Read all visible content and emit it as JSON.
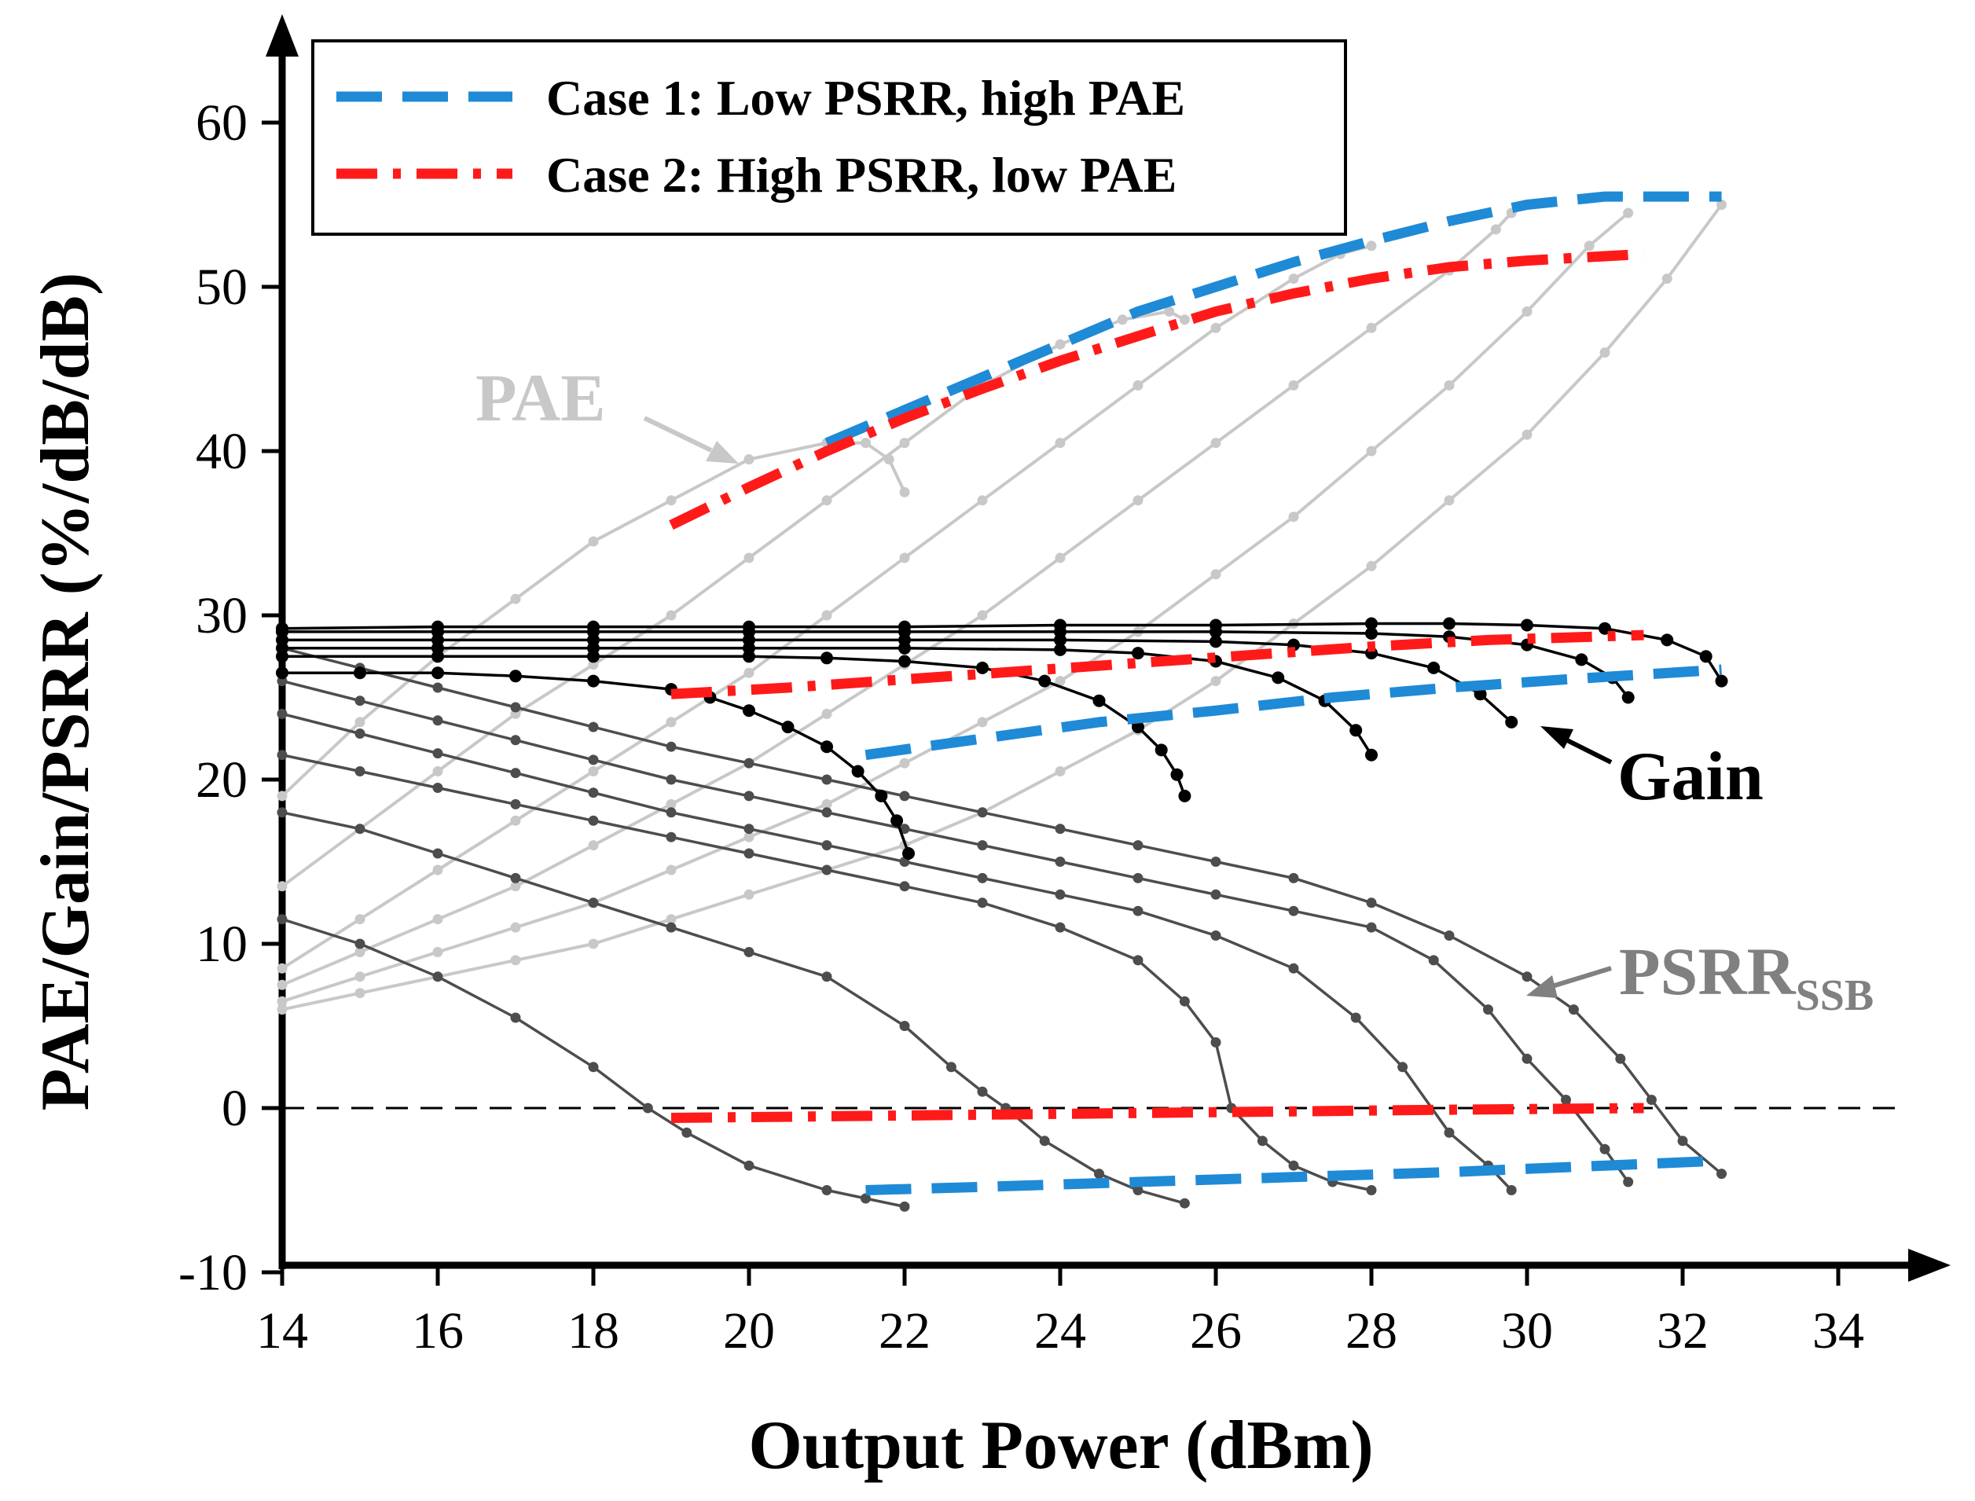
{
  "chart_data": {
    "type": "line",
    "title": "",
    "xlabel": "Output Power (dBm)",
    "ylabel": "PAE/Gain/PSRR (%/dB/dB)",
    "xlim": [
      14,
      35
    ],
    "ylim": [
      -10,
      63
    ],
    "xticks": [
      "14",
      "16",
      "18",
      "20",
      "22",
      "24",
      "26",
      "28",
      "30",
      "32",
      "34"
    ],
    "yticks": [
      "-10",
      "0",
      "10",
      "20",
      "30",
      "40",
      "50",
      "60"
    ],
    "legend_position": "top-left",
    "legend": [
      {
        "label": "Case 1: Low PSRR, high PAE",
        "style": "dashed",
        "color": "#1f8ad6"
      },
      {
        "label": "Case 2: High PSRR, low PAE",
        "style": "dashdot",
        "color": "#ff1a1a"
      }
    ],
    "annotations": {
      "pae": {
        "label": "PAE",
        "color": "#c8c8c8"
      },
      "gain": {
        "label": "Gain",
        "color": "#000000"
      },
      "psrr": {
        "label": "PSRR",
        "sub": "SSB",
        "color": "#808080"
      }
    },
    "colors": {
      "pae": "#c8c8c8",
      "gain": "#000000",
      "psrr": "#4d4d4d"
    },
    "zero_line": {
      "y": 0,
      "style": "dashed",
      "color": "#000000"
    },
    "pae_series": [
      {
        "name": "PAE sweep 1",
        "x": [
          14.0,
          15.0,
          16.0,
          17.0,
          18.0,
          19.0,
          20.0,
          21.0,
          21.5,
          21.8,
          22.0
        ],
        "y": [
          19,
          23.5,
          27.5,
          31,
          34.5,
          37,
          39.5,
          40.5,
          40.5,
          39.5,
          37.5
        ]
      },
      {
        "name": "PAE sweep 2",
        "x": [
          14.0,
          15.0,
          16.0,
          17.0,
          18.0,
          19.0,
          20.0,
          21.0,
          22.0,
          23.0,
          24.0,
          24.8,
          25.4,
          25.6
        ],
        "y": [
          13.5,
          17,
          20.5,
          24,
          27,
          30,
          33.5,
          37,
          40.5,
          44,
          46.5,
          48,
          48.5,
          48
        ]
      },
      {
        "name": "PAE sweep 3",
        "x": [
          14.0,
          15.0,
          16.0,
          17.0,
          18.0,
          19.0,
          20.0,
          21.0,
          22.0,
          23.0,
          24.0,
          25.0,
          26.0,
          27.0,
          27.6,
          28.0
        ],
        "y": [
          8.5,
          11.5,
          14.5,
          17.5,
          20.5,
          23.5,
          26.5,
          30,
          33.5,
          37,
          40.5,
          44,
          47.5,
          50.5,
          52,
          52.5
        ]
      },
      {
        "name": "PAE sweep 4",
        "x": [
          14.0,
          15.0,
          16.0,
          17.0,
          18.0,
          19.0,
          20.0,
          21.0,
          22.0,
          23.0,
          24.0,
          25.0,
          26.0,
          27.0,
          28.0,
          29.0,
          29.6,
          29.8
        ],
        "y": [
          7.5,
          9.5,
          11.5,
          13.5,
          16,
          18.5,
          21,
          24,
          27,
          30,
          33.5,
          37,
          40.5,
          44,
          47.5,
          51,
          53.5,
          54.5
        ]
      },
      {
        "name": "PAE sweep 5",
        "x": [
          14.0,
          15.0,
          16.0,
          17.0,
          18.0,
          19.0,
          20.0,
          21.0,
          22.0,
          23.0,
          24.0,
          25.0,
          26.0,
          27.0,
          28.0,
          29.0,
          30.0,
          30.8,
          31.3
        ],
        "y": [
          6.5,
          8,
          9.5,
          11,
          12.5,
          14.5,
          16.5,
          18.5,
          21,
          23.5,
          26,
          29,
          32.5,
          36,
          40,
          44,
          48.5,
          52.5,
          54.5
        ]
      },
      {
        "name": "PAE sweep 6",
        "x": [
          14.0,
          15.0,
          16.0,
          17.0,
          18.0,
          19.0,
          20.0,
          21.0,
          22.0,
          23.0,
          24.0,
          25.0,
          26.0,
          27.0,
          28.0,
          29.0,
          30.0,
          31.0,
          31.8,
          32.5
        ],
        "y": [
          6,
          7,
          8,
          9,
          10,
          11.5,
          13,
          14.5,
          16,
          18,
          20.5,
          23,
          26,
          29.5,
          33,
          37,
          41,
          46,
          50.5,
          55
        ]
      }
    ],
    "gain_series": [
      {
        "name": "Gain sweep 1",
        "x": [
          14.0,
          15.0,
          16.0,
          17.0,
          18.0,
          19.0,
          19.5,
          20.0,
          20.5,
          21.0,
          21.4,
          21.7,
          21.9,
          22.05
        ],
        "y": [
          26.5,
          26.5,
          26.5,
          26.3,
          26,
          25.5,
          25,
          24.2,
          23.2,
          22,
          20.5,
          19,
          17.5,
          15.5
        ]
      },
      {
        "name": "Gain sweep 2",
        "x": [
          14.0,
          16.0,
          18.0,
          20.0,
          21.0,
          22.0,
          23.0,
          23.8,
          24.5,
          25.0,
          25.3,
          25.5,
          25.6
        ],
        "y": [
          27.5,
          27.5,
          27.5,
          27.5,
          27.4,
          27.2,
          26.8,
          26,
          24.8,
          23.2,
          21.8,
          20.3,
          19
        ]
      },
      {
        "name": "Gain sweep 3",
        "x": [
          14.0,
          16.0,
          18.0,
          20.0,
          22.0,
          24.0,
          25.0,
          26.0,
          26.8,
          27.4,
          27.8,
          28.0
        ],
        "y": [
          28,
          28,
          28,
          28,
          28,
          27.9,
          27.7,
          27.2,
          26.2,
          24.8,
          23,
          21.5
        ]
      },
      {
        "name": "Gain sweep 4",
        "x": [
          14.0,
          16.0,
          18.0,
          20.0,
          22.0,
          24.0,
          26.0,
          27.0,
          28.0,
          28.8,
          29.4,
          29.8
        ],
        "y": [
          28.5,
          28.5,
          28.5,
          28.5,
          28.5,
          28.5,
          28.4,
          28.2,
          27.7,
          26.8,
          25.2,
          23.5
        ]
      },
      {
        "name": "Gain sweep 5",
        "x": [
          14.0,
          16.0,
          18.0,
          20.0,
          22.0,
          24.0,
          26.0,
          28.0,
          29.0,
          30.0,
          30.7,
          31.1,
          31.3
        ],
        "y": [
          29,
          29,
          29,
          29,
          29,
          29,
          29,
          28.9,
          28.7,
          28.2,
          27.3,
          26.2,
          25
        ]
      },
      {
        "name": "Gain sweep 6",
        "x": [
          14.0,
          16.0,
          18.0,
          20.0,
          22.0,
          24.0,
          26.0,
          28.0,
          29.0,
          30.0,
          31.0,
          31.8,
          32.3,
          32.5
        ],
        "y": [
          29.2,
          29.3,
          29.3,
          29.3,
          29.3,
          29.4,
          29.4,
          29.5,
          29.5,
          29.4,
          29.2,
          28.5,
          27.5,
          26
        ]
      }
    ],
    "psrr_series": [
      {
        "name": "PSRR sweep 1",
        "x": [
          14.0,
          15.0,
          16.0,
          17.0,
          18.0,
          18.7,
          19.2,
          20.0,
          21.0,
          21.5,
          22.0
        ],
        "y": [
          11.5,
          10,
          8,
          5.5,
          2.5,
          0,
          -1.5,
          -3.5,
          -5,
          -5.5,
          -6
        ]
      },
      {
        "name": "PSRR sweep 2",
        "x": [
          14.0,
          15.0,
          16.0,
          17.0,
          18.0,
          19.0,
          20.0,
          21.0,
          22.0,
          22.6,
          23.0,
          23.3,
          23.8,
          24.5,
          25.0,
          25.6
        ],
        "y": [
          18,
          17,
          15.5,
          14,
          12.5,
          11,
          9.5,
          8,
          5,
          2.5,
          1,
          0,
          -2,
          -4,
          -5,
          -5.8
        ]
      },
      {
        "name": "PSRR sweep 3",
        "x": [
          14.0,
          15.0,
          16.0,
          17.0,
          18.0,
          19.0,
          20.0,
          21.0,
          22.0,
          23.0,
          24.0,
          25.0,
          25.6,
          26.0,
          26.2,
          26.6,
          27.0,
          27.5,
          28.0
        ],
        "y": [
          21.5,
          20.5,
          19.5,
          18.5,
          17.5,
          16.5,
          15.5,
          14.5,
          13.5,
          12.5,
          11,
          9,
          6.5,
          4,
          0,
          -2,
          -3.5,
          -4.5,
          -5
        ]
      },
      {
        "name": "PSRR sweep 4",
        "x": [
          14.0,
          15.0,
          16.0,
          17.0,
          18.0,
          19.0,
          20.0,
          21.0,
          22.0,
          23.0,
          24.0,
          25.0,
          26.0,
          27.0,
          27.8,
          28.4,
          29.0,
          29.5,
          29.8
        ],
        "y": [
          24,
          22.8,
          21.6,
          20.4,
          19.2,
          18,
          17,
          16,
          15,
          14,
          13,
          12,
          10.5,
          8.5,
          5.5,
          2.5,
          -1.5,
          -3.5,
          -5
        ]
      },
      {
        "name": "PSRR sweep 5",
        "x": [
          14.0,
          15.0,
          16.0,
          17.0,
          18.0,
          19.0,
          20.0,
          21.0,
          22.0,
          23.0,
          24.0,
          25.0,
          26.0,
          27.0,
          28.0,
          28.8,
          29.5,
          30.0,
          30.5,
          31.0,
          31.3
        ],
        "y": [
          26,
          24.8,
          23.6,
          22.4,
          21.2,
          20,
          19,
          18,
          17,
          16,
          15,
          14,
          13,
          12,
          11,
          9,
          6,
          3,
          0.5,
          -2.5,
          -4.5
        ]
      },
      {
        "name": "PSRR sweep 6",
        "x": [
          14.0,
          15.0,
          16.0,
          17.0,
          18.0,
          19.0,
          20.0,
          21.0,
          22.0,
          23.0,
          24.0,
          25.0,
          26.0,
          27.0,
          28.0,
          29.0,
          30.0,
          30.6,
          31.2,
          31.6,
          32.0,
          32.5
        ],
        "y": [
          28,
          26.8,
          25.6,
          24.4,
          23.2,
          22,
          21,
          20,
          19,
          18,
          17,
          16,
          15,
          14,
          12.5,
          10.5,
          8,
          6,
          3,
          0.5,
          -2,
          -4
        ]
      }
    ],
    "case1_series": [
      {
        "name": "Case 1 PAE",
        "x": [
          21.0,
          22.0,
          23.0,
          24.0,
          25.0,
          26.0,
          27.0,
          28.0,
          29.0,
          30.0,
          31.0,
          32.5
        ],
        "y": [
          40.5,
          42.5,
          44.5,
          46.5,
          48.5,
          50,
          51.5,
          52.8,
          54,
          55,
          55.5,
          55.5
        ]
      },
      {
        "name": "Case 1 Gain",
        "x": [
          21.5,
          23.0,
          24.5,
          26.0,
          27.5,
          29.0,
          30.5,
          32.5
        ],
        "y": [
          21.5,
          22.5,
          23.5,
          24.2,
          25,
          25.6,
          26.1,
          26.7
        ]
      },
      {
        "name": "Case 1 PSRR",
        "x": [
          21.5,
          23.0,
          25.0,
          27.0,
          29.0,
          31.0,
          32.5
        ],
        "y": [
          -5,
          -4.8,
          -4.5,
          -4.2,
          -3.9,
          -3.5,
          -3.2
        ]
      }
    ],
    "case2_series": [
      {
        "name": "Case 2 PAE",
        "x": [
          19.0,
          20.0,
          21.0,
          22.0,
          23.0,
          24.0,
          25.0,
          26.0,
          27.0,
          28.0,
          29.0,
          30.0,
          31.5
        ],
        "y": [
          35.5,
          37.8,
          40,
          42,
          43.8,
          45.5,
          47,
          48.5,
          49.6,
          50.5,
          51.2,
          51.6,
          52
        ]
      },
      {
        "name": "Case 2 Gain",
        "x": [
          19.0,
          20.5,
          22.0,
          23.5,
          25.0,
          26.5,
          28.0,
          29.5,
          31.5
        ],
        "y": [
          25.2,
          25.6,
          26.1,
          26.6,
          27.1,
          27.6,
          28.1,
          28.5,
          28.8
        ]
      },
      {
        "name": "Case 2 PSRR",
        "x": [
          19.0,
          21.0,
          23.0,
          25.0,
          27.0,
          29.0,
          31.5
        ],
        "y": [
          -0.6,
          -0.5,
          -0.4,
          -0.3,
          -0.2,
          -0.1,
          0
        ]
      }
    ]
  }
}
